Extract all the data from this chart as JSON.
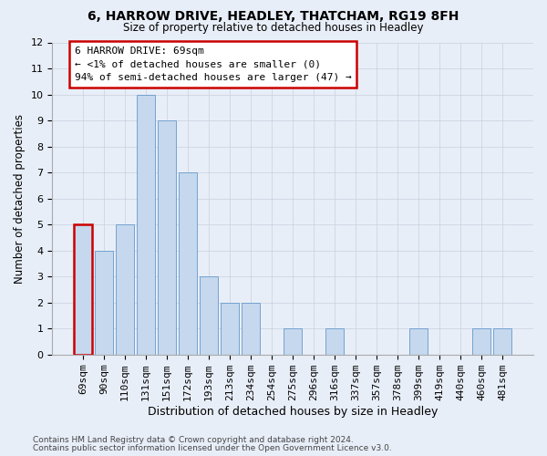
{
  "title1": "6, HARROW DRIVE, HEADLEY, THATCHAM, RG19 8FH",
  "title2": "Size of property relative to detached houses in Headley",
  "xlabel": "Distribution of detached houses by size in Headley",
  "ylabel": "Number of detached properties",
  "categories": [
    "69sqm",
    "90sqm",
    "110sqm",
    "131sqm",
    "151sqm",
    "172sqm",
    "193sqm",
    "213sqm",
    "234sqm",
    "254sqm",
    "275sqm",
    "296sqm",
    "316sqm",
    "337sqm",
    "357sqm",
    "378sqm",
    "399sqm",
    "419sqm",
    "440sqm",
    "460sqm",
    "481sqm"
  ],
  "values": [
    5,
    4,
    5,
    10,
    9,
    7,
    3,
    2,
    2,
    0,
    1,
    0,
    1,
    0,
    0,
    0,
    1,
    0,
    0,
    1,
    1
  ],
  "bar_color": "#c5d8ed",
  "bar_edge_color": "#6699cc",
  "highlight_bar_edge": "#cc0000",
  "annotation_line1": "6 HARROW DRIVE: 69sqm",
  "annotation_line2": "← <1% of detached houses are smaller (0)",
  "annotation_line3": "94% of semi-detached houses are larger (47) →",
  "annotation_box_facecolor": "#ffffff",
  "annotation_box_edgecolor": "#cc0000",
  "ylim": [
    0,
    12
  ],
  "yticks": [
    0,
    1,
    2,
    3,
    4,
    5,
    6,
    7,
    8,
    9,
    10,
    11,
    12
  ],
  "footer1": "Contains HM Land Registry data © Crown copyright and database right 2024.",
  "footer2": "Contains public sector information licensed under the Open Government Licence v3.0.",
  "bg_color": "#e8eef8",
  "title_fontsize": 10,
  "subtitle_fontsize": 8.5,
  "xlabel_fontsize": 9,
  "ylabel_fontsize": 8.5,
  "tick_fontsize": 8,
  "annotation_fontsize": 8,
  "footer_fontsize": 6.5
}
